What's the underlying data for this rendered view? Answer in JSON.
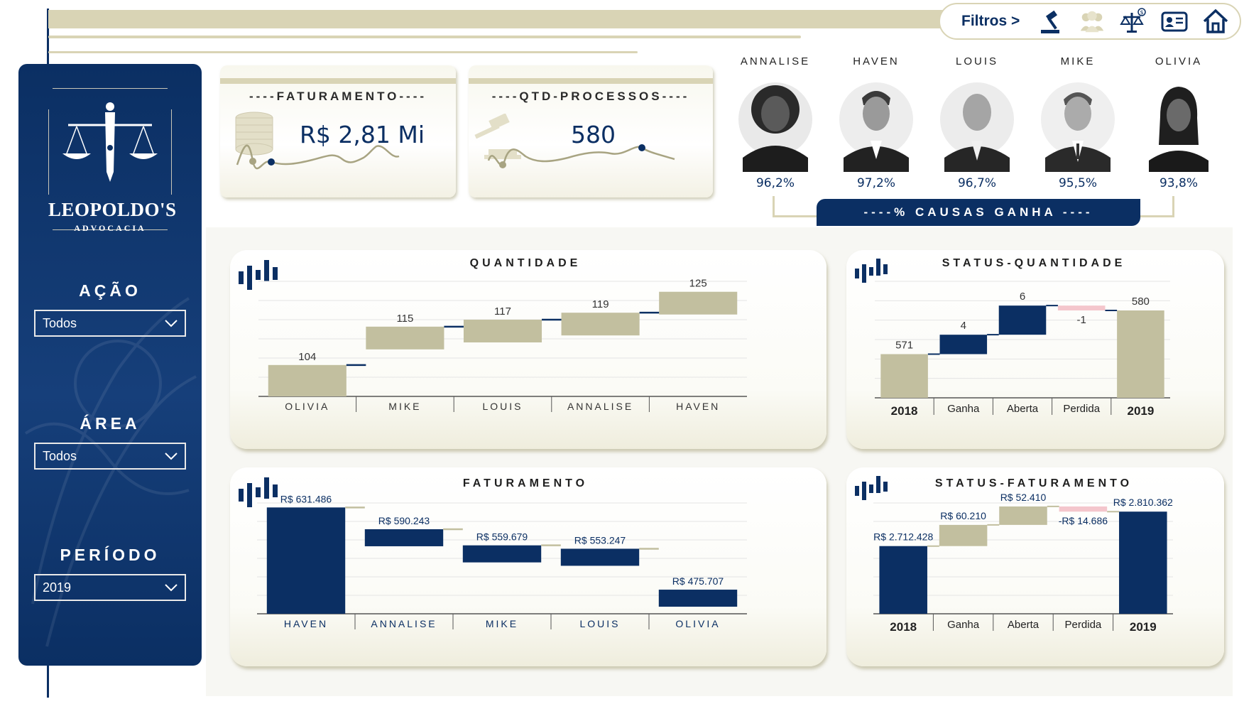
{
  "filters": {
    "label": "Filtros >",
    "icons": [
      "gavel-icon",
      "people-icon",
      "scale-money-icon",
      "id-card-icon",
      "home-icon"
    ]
  },
  "brand": {
    "name": "LEOPOLDO'S",
    "subtitle": "ADVOCACIA"
  },
  "slicers": [
    {
      "title": "AÇÃO",
      "value": "Todos"
    },
    {
      "title": "ÁREA",
      "value": "Todos"
    },
    {
      "title": "PERÍODO",
      "value": "2019"
    }
  ],
  "kpis": {
    "faturamento": {
      "title": "----FATURAMENTO----",
      "value": "R$ 2,81 Mi",
      "icon": "coins-icon"
    },
    "processos": {
      "title": "----QTD-PROCESSOS----",
      "value": "580",
      "icon": "gavel-icon"
    }
  },
  "lawyers": [
    {
      "name": "ANNALISE",
      "pct": "96,2%"
    },
    {
      "name": "HAVEN",
      "pct": "97,2%"
    },
    {
      "name": "LOUIS",
      "pct": "96,7%"
    },
    {
      "name": "MIKE",
      "pct": "95,5%"
    },
    {
      "name": "OLIVIA",
      "pct": "93,8%"
    }
  ],
  "causas_label": "----% CAUSAS GANHA ----",
  "colors": {
    "navy": "#0b2f63",
    "khaki": "#c2bf9f",
    "pink": "#f4c6cc",
    "beige": "#d9d4b5"
  },
  "chart_data": [
    {
      "type": "bar",
      "title": "QUANTIDADE",
      "categories": [
        "OLIVIA",
        "MIKE",
        "LOUIS",
        "ANNALISE",
        "HAVEN"
      ],
      "values": [
        104,
        115,
        117,
        119,
        125
      ],
      "labels": [
        "104",
        "115",
        "117",
        "119",
        "125"
      ]
    },
    {
      "type": "bar",
      "title": "STATUS-QUANTIDADE",
      "categories": [
        "2018",
        "Ganha",
        "Aberta",
        "Perdida",
        "2019"
      ],
      "values": [
        571,
        4,
        6,
        -1,
        580
      ],
      "labels": [
        "571",
        "4",
        "6",
        "-1",
        "580"
      ]
    },
    {
      "type": "bar",
      "title": "FATURAMENTO",
      "categories": [
        "HAVEN",
        "ANNALISE",
        "MIKE",
        "LOUIS",
        "OLIVIA"
      ],
      "values": [
        631486,
        590243,
        559679,
        553247,
        475707
      ],
      "labels": [
        "R$ 631.486",
        "R$ 590.243",
        "R$ 559.679",
        "R$ 553.247",
        "R$ 475.707"
      ]
    },
    {
      "type": "bar",
      "title": "STATUS-FATURAMENTO",
      "categories": [
        "2018",
        "Ganha",
        "Aberta",
        "Perdida",
        "2019"
      ],
      "values": [
        2712428,
        60210,
        52410,
        -14686,
        2810362
      ],
      "labels": [
        "R$ 2.712.428",
        "R$ 60.210",
        "R$ 52.410",
        "-R$ 14.686",
        "R$ 2.810.362"
      ]
    }
  ]
}
